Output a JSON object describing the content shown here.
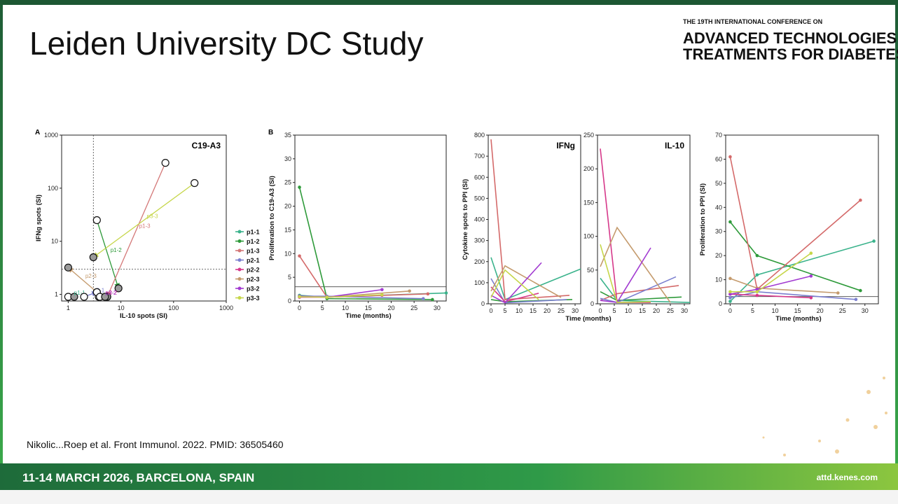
{
  "header": {
    "title": "Leiden University DC Study",
    "conference_line1": "THE 19TH INTERNATIONAL CONFERENCE ON",
    "conference_line2": "ADVANCED TECHNOLOGIES &",
    "conference_line3": "TREATMENTS FOR DIABETES"
  },
  "citation": "Nikolic...Roep et al. Front Immunol. 2022. PMID: 36505460",
  "footer": {
    "dates": "11-14 MARCH 2026, BARCELONA, SPAIN",
    "website": "attd.kenes.com"
  },
  "chart_data": [
    {
      "type": "scatter",
      "panel_label": "A",
      "title": "C19-A3",
      "x_label": "IL-10 spots (SI)",
      "y_label": "IFNg spots (SI)",
      "log_x": true,
      "log_y": true,
      "xlim": [
        0.75,
        1000
      ],
      "ylim": [
        0.75,
        1000
      ],
      "xticks": [
        1,
        10,
        100,
        1000
      ],
      "yticks": [
        1,
        10,
        100,
        1000
      ],
      "hline": 3,
      "vline": 3,
      "legend": "right",
      "series": [
        {
          "name": "p1-1",
          "color": "#3bb38c",
          "x": [
            1.0,
            1.3
          ],
          "values": [
            0.9,
            0.9
          ]
        },
        {
          "name": "p1-2",
          "color": "#2e9a3a",
          "x": [
            3.5,
            9
          ],
          "values": [
            25,
            1.3
          ]
        },
        {
          "name": "p1-3",
          "color": "#d47878",
          "x": [
            70,
            5.5
          ],
          "values": [
            300,
            0.9
          ]
        },
        {
          "name": "p2-1",
          "color": "#7b7fcf",
          "x": [
            2,
            3.5
          ],
          "values": [
            0.9,
            1.1
          ]
        },
        {
          "name": "p2-2",
          "color": "#d6388a",
          "x": [
            3.8,
            5.5
          ],
          "values": [
            0.9,
            0.9
          ]
        },
        {
          "name": "p2-3",
          "color": "#c49a6c",
          "x": [
            3.5,
            1.0
          ],
          "values": [
            1.1,
            3.2
          ]
        },
        {
          "name": "p3-2",
          "color": "#a23bd1",
          "x": [
            4,
            5
          ],
          "values": [
            0.9,
            0.9
          ]
        },
        {
          "name": "p3-3",
          "color": "#c6d64a",
          "x": [
            250,
            3
          ],
          "values": [
            125,
            5
          ]
        }
      ]
    },
    {
      "type": "line",
      "panel_label": "B",
      "x_label": "Time (months)",
      "y_label": "Proliferation to C19-A3 (SI)",
      "xlim": [
        -1,
        32
      ],
      "ylim": [
        0,
        35
      ],
      "xticks": [
        0,
        5,
        10,
        15,
        20,
        25,
        30
      ],
      "yticks": [
        0,
        5,
        10,
        15,
        20,
        25,
        30,
        35
      ],
      "hline": 3,
      "series": [
        {
          "name": "p1-1",
          "color": "#3bb38c",
          "x": [
            0,
            6,
            32
          ],
          "values": [
            1.2,
            0.8,
            1.7
          ]
        },
        {
          "name": "p1-2",
          "color": "#2e9a3a",
          "x": [
            0,
            6,
            29
          ],
          "values": [
            24,
            0.5,
            0.3
          ]
        },
        {
          "name": "p1-3",
          "color": "#d46a6a",
          "x": [
            0,
            6,
            28
          ],
          "values": [
            9.5,
            0.8,
            1.5
          ]
        },
        {
          "name": "p2-1",
          "color": "#7b7fcf",
          "x": [
            0,
            6,
            27
          ],
          "values": [
            1,
            1,
            0.5
          ]
        },
        {
          "name": "p2-2",
          "color": "#d6388a",
          "x": [
            0,
            6,
            18
          ],
          "values": [
            0.8,
            0.8,
            1.2
          ]
        },
        {
          "name": "p2-3",
          "color": "#c49a6c",
          "x": [
            0,
            6,
            24
          ],
          "values": [
            1,
            0.8,
            2.1
          ]
        },
        {
          "name": "p3-2",
          "color": "#a23bd1",
          "x": [
            0,
            6,
            18
          ],
          "values": [
            1,
            0.8,
            2.4
          ]
        },
        {
          "name": "p3-3",
          "color": "#c6d64a",
          "x": [
            0,
            6,
            18
          ],
          "values": [
            0.9,
            0.8,
            1.3
          ]
        }
      ]
    },
    {
      "type": "line",
      "title": "IFNg",
      "x_label": "Time (months)",
      "y_label": "Cytokine spots to PPI (SI)",
      "xlim": [
        -1,
        32
      ],
      "ylim": [
        0,
        800
      ],
      "xticks": [
        0,
        5,
        10,
        15,
        20,
        25,
        30
      ],
      "yticks": [
        0,
        100,
        200,
        300,
        400,
        500,
        600,
        700,
        800
      ],
      "series": [
        {
          "name": "p1-1",
          "color": "#3bb38c",
          "x": [
            0,
            5,
            32
          ],
          "values": [
            220,
            20,
            165
          ]
        },
        {
          "name": "p1-2",
          "color": "#2e9a3a",
          "x": [
            0,
            5,
            29
          ],
          "values": [
            20,
            10,
            20
          ]
        },
        {
          "name": "p1-3",
          "color": "#d46a6a",
          "x": [
            0,
            5,
            28
          ],
          "values": [
            780,
            20,
            40
          ]
        },
        {
          "name": "p2-1",
          "color": "#7b7fcf",
          "x": [
            0,
            5,
            27
          ],
          "values": [
            120,
            5,
            20
          ]
        },
        {
          "name": "p2-2",
          "color": "#d6388a",
          "x": [
            0,
            5,
            17
          ],
          "values": [
            80,
            10,
            50
          ]
        },
        {
          "name": "p2-3",
          "color": "#c49a6c",
          "x": [
            0,
            5,
            25
          ],
          "values": [
            60,
            180,
            30
          ]
        },
        {
          "name": "p3-2",
          "color": "#a23bd1",
          "x": [
            0,
            5,
            18
          ],
          "values": [
            40,
            5,
            195
          ]
        },
        {
          "name": "p3-3",
          "color": "#c6d64a",
          "x": [
            0,
            5,
            17
          ],
          "values": [
            30,
            160,
            20
          ]
        }
      ]
    },
    {
      "type": "line",
      "title": "IL-10",
      "xlim": [
        -1,
        32
      ],
      "ylim": [
        0,
        250
      ],
      "xticks": [
        0,
        5,
        10,
        15,
        20,
        25,
        30
      ],
      "yticks": [
        0,
        50,
        100,
        150,
        200,
        250
      ],
      "series": [
        {
          "name": "p1-1",
          "color": "#3bb38c",
          "x": [
            0,
            6,
            32
          ],
          "values": [
            38,
            5,
            2
          ]
        },
        {
          "name": "p1-2",
          "color": "#2e9a3a",
          "x": [
            0,
            6,
            29
          ],
          "values": [
            18,
            5,
            10
          ]
        },
        {
          "name": "p1-3",
          "color": "#d46a6a",
          "x": [
            0,
            6,
            28
          ],
          "values": [
            5,
            15,
            27
          ]
        },
        {
          "name": "p2-1",
          "color": "#7b7fcf",
          "x": [
            0,
            6,
            27
          ],
          "values": [
            8,
            2,
            40
          ]
        },
        {
          "name": "p2-2",
          "color": "#d6388a",
          "x": [
            0,
            6,
            18
          ],
          "values": [
            230,
            2,
            2
          ]
        },
        {
          "name": "p2-3",
          "color": "#c49a6c",
          "x": [
            0,
            6,
            25
          ],
          "values": [
            55,
            113,
            2
          ]
        },
        {
          "name": "p3-2",
          "color": "#a23bd1",
          "x": [
            0,
            6,
            18
          ],
          "values": [
            5,
            2,
            83
          ]
        },
        {
          "name": "p3-3",
          "color": "#c6d64a",
          "x": [
            0,
            6,
            18
          ],
          "values": [
            88,
            2,
            3
          ]
        }
      ]
    },
    {
      "type": "line",
      "x_label": "Time (months)",
      "y_label": "Proliferation to PPI (SI)",
      "xlim": [
        -1,
        33
      ],
      "ylim": [
        0,
        70
      ],
      "xticks": [
        0,
        5,
        10,
        15,
        20,
        25,
        30
      ],
      "yticks": [
        0,
        10,
        20,
        30,
        40,
        50,
        60,
        70
      ],
      "hline": 3,
      "series": [
        {
          "name": "p1-1",
          "color": "#3bb38c",
          "x": [
            0,
            6,
            32
          ],
          "values": [
            1,
            12,
            26
          ]
        },
        {
          "name": "p1-2",
          "color": "#2e9a3a",
          "x": [
            0,
            6,
            29
          ],
          "values": [
            34,
            20,
            5.5
          ]
        },
        {
          "name": "p1-3",
          "color": "#d46a6a",
          "x": [
            0,
            6,
            29
          ],
          "values": [
            61,
            6,
            43
          ]
        },
        {
          "name": "p2-1",
          "color": "#7b7fcf",
          "x": [
            0,
            6,
            28
          ],
          "values": [
            2.5,
            5,
            1.8
          ]
        },
        {
          "name": "p2-2",
          "color": "#d6388a",
          "x": [
            0,
            6,
            18
          ],
          "values": [
            4,
            3.5,
            2.5
          ]
        },
        {
          "name": "p2-3",
          "color": "#c49a6c",
          "x": [
            0,
            6,
            24
          ],
          "values": [
            10.5,
            6.5,
            4.5
          ]
        },
        {
          "name": "p3-2",
          "color": "#a23bd1",
          "x": [
            0,
            6,
            18
          ],
          "values": [
            4,
            6,
            11.5
          ]
        },
        {
          "name": "p3-3",
          "color": "#c6d64a",
          "x": [
            0,
            6,
            18
          ],
          "values": [
            5,
            5,
            21
          ]
        }
      ]
    }
  ]
}
